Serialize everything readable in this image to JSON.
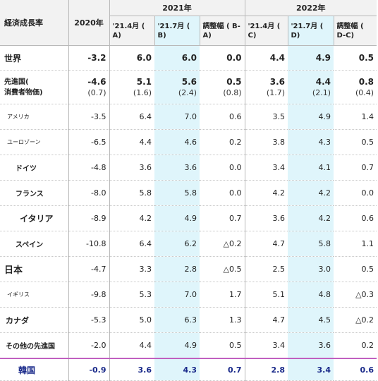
{
  "header": {
    "title": "経済成長率",
    "col_2020": "2020年",
    "group_2021": "2021年",
    "group_2022": "2022年",
    "sub": [
      "'21.4月 ( A)",
      "'21.7月 ( B)",
      "調整幅 ( B-A)",
      "'21.4月 ( C)",
      "'21.7月 ( D)",
      "調整幅 ( D-C)"
    ]
  },
  "rows": [
    {
      "label": "世界",
      "v": [
        "-3.2",
        "6.0",
        "6.0",
        "0.0",
        "4.4",
        "4.9",
        "0.5"
      ]
    },
    {
      "label": "先進国(",
      "label2": "消費者物価)",
      "v": [
        "-4.6",
        "5.1",
        "5.6",
        "0.5",
        "3.6",
        "4.4",
        "0.8"
      ],
      "p": [
        "(0.7)",
        "(1.6)",
        "(2.4)",
        "(0.8)",
        "(1.7)",
        "(2.1)",
        "(0.4)"
      ]
    },
    {
      "label": "アメリカ",
      "v": [
        "-3.5",
        "6.4",
        "7.0",
        "0.6",
        "3.5",
        "4.9",
        "1.4"
      ]
    },
    {
      "label": "ユーロゾーン",
      "v": [
        "-6.5",
        "4.4",
        "4.6",
        "0.2",
        "3.8",
        "4.3",
        "0.5"
      ]
    },
    {
      "label": "ドイツ",
      "v": [
        "-4.8",
        "3.6",
        "3.6",
        "0.0",
        "3.4",
        "4.1",
        "0.7"
      ]
    },
    {
      "label": "フランス",
      "v": [
        "-8.0",
        "5.8",
        "5.8",
        "0.0",
        "4.2",
        "4.2",
        "0.0"
      ]
    },
    {
      "label": "イタリア",
      "v": [
        "-8.9",
        "4.2",
        "4.9",
        "0.7",
        "3.6",
        "4.2",
        "0.6"
      ]
    },
    {
      "label": "スペイン",
      "v": [
        "-10.8",
        "6.4",
        "6.2",
        "△0.2",
        "4.7",
        "5.8",
        "1.1"
      ]
    },
    {
      "label": "日本",
      "v": [
        "-4.7",
        "3.3",
        "2.8",
        "△0.5",
        "2.5",
        "3.0",
        "0.5"
      ]
    },
    {
      "label": "イギリス",
      "v": [
        "-9.8",
        "5.3",
        "7.0",
        "1.7",
        "5.1",
        "4.8",
        "△0.3"
      ]
    },
    {
      "label": "カナダ",
      "v": [
        "-5.3",
        "5.0",
        "6.3",
        "1.3",
        "4.7",
        "4.5",
        "△0.2"
      ]
    },
    {
      "label": "その他の先進国",
      "v": [
        "-2.0",
        "4.4",
        "4.9",
        "0.5",
        "3.4",
        "3.6",
        "0.2"
      ]
    },
    {
      "label": "韓国",
      "v": [
        "-0.9",
        "3.6",
        "4.3",
        "0.7",
        "2.8",
        "3.4",
        "0.6"
      ]
    }
  ],
  "colors": {
    "highlight": "#dff5fb",
    "korea_text": "#1a2a8a",
    "korea_border": "#c060c0"
  }
}
